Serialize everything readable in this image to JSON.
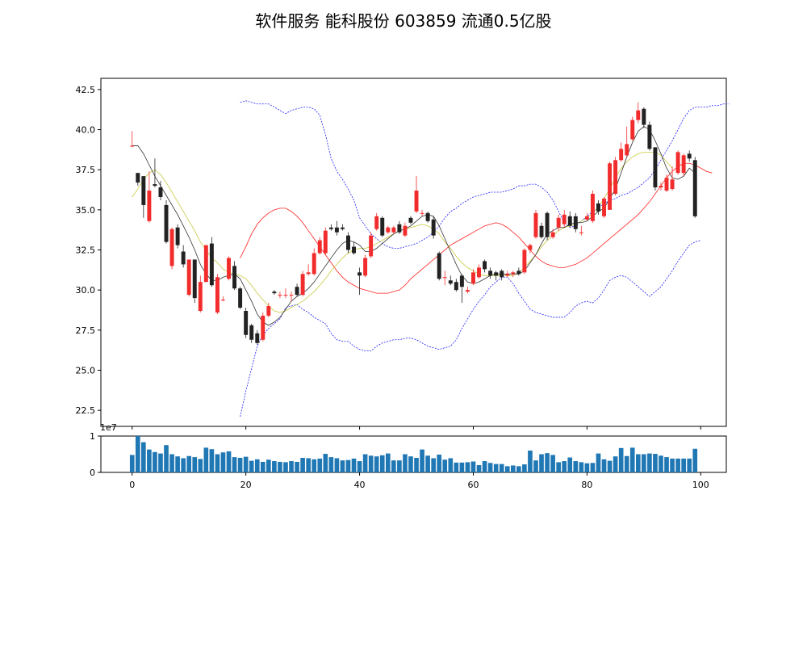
{
  "title": "软件服务 能科股份 603859 流通0.5亿股",
  "chart_data": {
    "type": "candlestick",
    "x": [
      0,
      1,
      2,
      3,
      4,
      5,
      6,
      7,
      8,
      9,
      10,
      11,
      12,
      13,
      14,
      15,
      16,
      17,
      18,
      19,
      20,
      21,
      22,
      23,
      24,
      25,
      26,
      27,
      28,
      29,
      30,
      31,
      32,
      33,
      34,
      35,
      36,
      37,
      38,
      39,
      40,
      41,
      42,
      43,
      44,
      45,
      46,
      47,
      48,
      49,
      50,
      51,
      52,
      53,
      54,
      55,
      56,
      57,
      58,
      59,
      60,
      61,
      62,
      63,
      64,
      65,
      66,
      67,
      68,
      69,
      70,
      71,
      72,
      73,
      74,
      75,
      76,
      77,
      78,
      79,
      80,
      81,
      82,
      83,
      84,
      85,
      86,
      87,
      88,
      89,
      90,
      91,
      92,
      93,
      94,
      95,
      96,
      97,
      98,
      99
    ],
    "open": [
      39.0,
      37.3,
      37.1,
      34.3,
      36.6,
      36.4,
      35.3,
      31.5,
      33.9,
      32.4,
      29.7,
      31.9,
      28.7,
      30.5,
      32.9,
      28.6,
      29.4,
      30.7,
      31.5,
      30.1,
      28.7,
      27.8,
      27.3,
      26.9,
      28.4,
      29.9,
      29.7,
      29.7,
      29.7,
      30.2,
      29.7,
      31.0,
      31.0,
      32.3,
      32.3,
      33.9,
      33.9,
      33.9,
      33.4,
      32.7,
      31.1,
      30.9,
      32.1,
      33.8,
      34.5,
      33.6,
      33.6,
      34.1,
      33.4,
      34.5,
      34.9,
      34.8,
      34.8,
      34.4,
      32.3,
      30.8,
      30.6,
      30.5,
      30.9,
      29.9,
      30.4,
      30.8,
      31.8,
      31.2,
      31.1,
      31.2,
      30.9,
      31.0,
      31.2,
      31.1,
      32.5,
      33.3,
      34.0,
      34.8,
      33.3,
      33.9,
      34.1,
      34.6,
      34.6,
      33.6,
      34.4,
      34.3,
      35.4,
      34.6,
      35.0,
      36.0,
      38.1,
      38.4,
      39.4,
      40.6,
      41.3,
      40.3,
      38.9,
      36.4,
      36.2,
      36.3,
      37.3,
      37.3,
      38.5,
      38.1
    ],
    "close": [
      39.0,
      36.7,
      35.3,
      36.2,
      36.5,
      35.8,
      33.0,
      33.8,
      32.8,
      31.6,
      31.9,
      29.5,
      30.5,
      32.8,
      30.3,
      30.8,
      29.4,
      32.0,
      30.1,
      28.9,
      27.2,
      26.9,
      26.7,
      28.4,
      29.0,
      29.8,
      29.7,
      29.7,
      29.7,
      29.7,
      31.0,
      31.1,
      32.3,
      33.1,
      33.7,
      33.8,
      33.6,
      33.8,
      32.5,
      32.3,
      30.9,
      32.0,
      33.4,
      34.6,
      33.4,
      33.9,
      33.9,
      33.6,
      34.0,
      34.2,
      36.2,
      34.8,
      34.3,
      33.4,
      30.7,
      30.8,
      30.4,
      30.0,
      30.2,
      30.0,
      31.1,
      31.4,
      31.3,
      30.9,
      30.9,
      30.8,
      31.0,
      31.1,
      31.0,
      32.5,
      32.8,
      34.8,
      33.3,
      33.3,
      33.6,
      34.5,
      34.7,
      34.0,
      33.8,
      33.6,
      34.6,
      36.0,
      34.9,
      35.7,
      37.9,
      38.1,
      38.8,
      39.1,
      40.6,
      41.2,
      40.3,
      38.8,
      36.4,
      36.5,
      37.0,
      36.9,
      38.6,
      38.4,
      38.2,
      34.6
    ],
    "high": [
      39.9,
      37.3,
      37.1,
      37.4,
      38.2,
      36.8,
      35.6,
      33.9,
      34.1,
      32.8,
      31.9,
      31.9,
      30.9,
      32.8,
      33.3,
      31.0,
      29.6,
      32.1,
      31.8,
      30.2,
      28.9,
      27.9,
      27.5,
      28.6,
      29.2,
      30.0,
      29.9,
      30.1,
      29.9,
      30.4,
      31.2,
      31.6,
      32.6,
      33.3,
      33.9,
      34.1,
      34.3,
      34.1,
      33.6,
      33.0,
      31.4,
      32.2,
      33.6,
      34.8,
      34.6,
      34.0,
      34.0,
      34.3,
      34.2,
      34.6,
      37.1,
      35.0,
      34.9,
      34.6,
      32.4,
      31.2,
      30.9,
      30.7,
      31.0,
      30.2,
      31.3,
      31.6,
      31.9,
      31.4,
      31.2,
      31.3,
      31.2,
      31.2,
      31.4,
      32.6,
      32.9,
      35.0,
      34.2,
      34.9,
      33.8,
      34.7,
      35.0,
      34.9,
      34.8,
      34.0,
      34.8,
      36.2,
      35.6,
      35.8,
      38.0,
      38.3,
      39.2,
      40.2,
      40.8,
      41.7,
      41.4,
      40.5,
      38.9,
      36.7,
      37.2,
      37.7,
      38.7,
      38.5,
      38.7,
      38.3
    ],
    "low": [
      38.9,
      36.5,
      34.5,
      34.2,
      36.4,
      35.6,
      32.9,
      31.3,
      32.6,
      31.4,
      29.6,
      29.2,
      28.6,
      30.5,
      30.2,
      28.5,
      29.3,
      30.6,
      30.0,
      28.8,
      27.0,
      26.7,
      26.6,
      26.8,
      28.3,
      29.7,
      29.5,
      29.5,
      29.3,
      29.6,
      29.6,
      30.9,
      30.9,
      32.2,
      32.2,
      33.7,
      33.4,
      33.7,
      32.3,
      32.2,
      29.7,
      30.8,
      32.0,
      33.7,
      33.3,
      33.5,
      33.5,
      33.5,
      33.3,
      34.1,
      34.8,
      34.6,
      34.2,
      33.2,
      30.6,
      30.3,
      30.3,
      29.9,
      29.2,
      29.8,
      30.3,
      30.7,
      31.1,
      30.7,
      30.6,
      30.6,
      30.8,
      30.8,
      30.9,
      31.0,
      32.3,
      33.2,
      33.2,
      33.1,
      33.2,
      33.7,
      33.9,
      33.9,
      33.6,
      33.4,
      34.3,
      34.2,
      34.7,
      34.5,
      35.0,
      35.9,
      38.0,
      38.3,
      39.3,
      40.4,
      40.1,
      38.7,
      36.2,
      36.2,
      36.1,
      36.2,
      37.2,
      37.1,
      38.0,
      34.5
    ],
    "ma5": [
      39.0,
      39.0,
      38.5,
      37.8,
      37.1,
      36.5,
      35.9,
      35.3,
      34.7,
      34.0,
      33.3,
      32.5,
      31.6,
      31.0,
      30.6,
      30.6,
      30.8,
      30.9,
      31.0,
      30.7,
      30.0,
      29.3,
      28.5,
      28.0,
      27.8,
      28.0,
      28.3,
      28.8,
      29.3,
      29.6,
      29.8,
      30.1,
      30.5,
      31.0,
      31.5,
      32.0,
      32.5,
      32.9,
      33.1,
      33.0,
      32.8,
      32.4,
      32.4,
      32.6,
      32.9,
      33.2,
      33.5,
      33.7,
      33.8,
      34.0,
      34.3,
      34.6,
      34.7,
      34.6,
      34.0,
      33.2,
      32.4,
      31.6,
      30.9,
      30.5,
      30.4,
      30.5,
      30.7,
      30.9,
      31.0,
      31.0,
      31.0,
      31.0,
      31.0,
      31.2,
      31.7,
      32.2,
      32.9,
      33.5,
      33.7,
      33.9,
      33.9,
      34.1,
      34.2,
      34.2,
      34.3,
      34.6,
      34.9,
      35.1,
      35.7,
      36.3,
      37.3,
      38.3,
      39.2,
      39.9,
      40.2,
      40.0,
      39.3,
      38.5,
      37.6,
      37.0,
      36.9,
      37.1,
      37.6,
      37.3
    ],
    "ma10": [
      35.8,
      36.3,
      36.9,
      37.3,
      37.5,
      37.2,
      36.7,
      36.1,
      35.5,
      34.9,
      34.3,
      33.7,
      33.0,
      32.5,
      32.0,
      31.7,
      31.3,
      31.1,
      31.0,
      30.9,
      30.7,
      30.3,
      29.8,
      29.4,
      29.0,
      28.7,
      28.6,
      28.7,
      28.9,
      29.1,
      29.3,
      29.6,
      29.9,
      30.3,
      30.7,
      31.2,
      31.6,
      32.0,
      32.3,
      32.5,
      32.6,
      32.6,
      32.7,
      32.9,
      33.1,
      33.3,
      33.5,
      33.7,
      33.8,
      33.9,
      34.0,
      34.1,
      34.0,
      33.8,
      33.5,
      33.0,
      32.6,
      32.1,
      31.7,
      31.4,
      31.2,
      31.0,
      30.9,
      30.9,
      30.9,
      30.9,
      30.9,
      30.9,
      31.1,
      31.4,
      31.8,
      32.2,
      32.7,
      33.1,
      33.4,
      33.7,
      33.9,
      34.0,
      34.1,
      34.3,
      34.5,
      34.8,
      35.2,
      35.7,
      36.3,
      37.0,
      37.6,
      38.0,
      38.3,
      38.5,
      38.6,
      38.6,
      38.6,
      38.4,
      38.0,
      37.6
    ],
    "boll_mid": [
      32.0,
      32.7,
      33.5,
      34.1,
      34.5,
      34.8,
      35.0,
      35.1,
      35.1,
      34.9,
      34.6,
      34.2,
      33.7,
      33.2,
      32.7,
      32.2,
      31.7,
      31.2,
      30.8,
      30.5,
      30.3,
      30.1,
      30.0,
      29.9,
      29.8,
      29.8,
      29.8,
      29.9,
      30.0,
      30.3,
      30.7,
      31.0,
      31.3,
      31.6,
      31.9,
      32.2,
      32.5,
      32.8,
      33.0,
      33.2,
      33.4,
      33.6,
      33.8,
      34.0,
      34.1,
      34.2,
      34.1,
      33.9,
      33.6,
      33.3,
      32.9,
      32.5,
      32.1,
      31.8,
      31.6,
      31.5,
      31.4,
      31.4,
      31.5,
      31.6,
      31.8,
      32.0,
      32.3,
      32.6,
      32.9,
      33.2,
      33.5,
      33.8,
      34.1,
      34.4,
      34.7,
      35.1,
      35.5,
      36.0,
      36.5,
      37.0,
      37.4,
      37.7,
      37.9,
      37.9,
      37.8,
      37.6,
      37.4,
      37.3
    ],
    "boll_up": [
      41.7,
      41.8,
      41.7,
      41.6,
      41.6,
      41.6,
      41.4,
      41.2,
      41.0,
      41.2,
      41.3,
      41.4,
      41.4,
      41.3,
      40.9,
      39.7,
      38.2,
      37.4,
      36.9,
      36.3,
      35.6,
      34.5,
      34.0,
      33.5,
      33.2,
      32.9,
      32.7,
      32.6,
      32.6,
      32.7,
      32.8,
      32.9,
      33.1,
      33.3,
      33.6,
      34.0,
      34.5,
      34.9,
      35.1,
      35.4,
      35.6,
      35.8,
      35.9,
      36.0,
      36.1,
      36.1,
      36.1,
      36.2,
      36.3,
      36.5,
      36.5,
      36.6,
      36.6,
      36.4,
      36.1,
      35.6,
      34.9,
      34.2,
      33.9,
      34.0,
      34.3,
      34.6,
      34.9,
      35.1,
      35.4,
      35.6,
      35.7,
      35.9,
      36.0,
      36.2,
      36.4,
      36.7,
      37.0,
      37.5,
      38.1,
      38.7,
      39.3,
      40.0,
      40.7,
      41.2,
      41.4,
      41.4,
      41.4,
      41.5,
      41.5,
      41.6,
      41.6
    ],
    "boll_dn": [
      22.1,
      23.7,
      25.1,
      26.5,
      27.2,
      27.6,
      27.9,
      28.2,
      28.9,
      29.0,
      29.1,
      28.8,
      28.6,
      28.3,
      28.1,
      27.9,
      27.3,
      26.9,
      26.8,
      26.8,
      26.5,
      26.3,
      26.2,
      26.2,
      26.5,
      26.7,
      26.8,
      26.9,
      26.9,
      27.0,
      27.0,
      26.9,
      26.7,
      26.5,
      26.4,
      26.3,
      26.4,
      26.5,
      26.9,
      27.6,
      28.2,
      28.8,
      29.3,
      29.7,
      30.2,
      30.5,
      30.8,
      30.8,
      30.4,
      29.8,
      29.3,
      28.8,
      28.6,
      28.5,
      28.4,
      28.3,
      28.3,
      28.3,
      28.6,
      29.0,
      29.2,
      29.3,
      29.2,
      29.5,
      30.0,
      30.6,
      30.8,
      30.9,
      30.8,
      30.5,
      30.2,
      29.9,
      29.6,
      29.9,
      30.2,
      30.7,
      31.2,
      31.8,
      32.3,
      32.8,
      33.0,
      33.1
    ],
    "volume": [
      4800000,
      10000000,
      8300000,
      6300000,
      5600000,
      5200000,
      7500000,
      5000000,
      4400000,
      3900000,
      4500000,
      4200000,
      3700000,
      6800000,
      6400000,
      5000000,
      5500000,
      5800000,
      4200000,
      4000000,
      4300000,
      3200000,
      3600000,
      2900000,
      3500000,
      3100000,
      2900000,
      2800000,
      3100000,
      2900000,
      4000000,
      3900000,
      3600000,
      3800000,
      5100000,
      4200000,
      3900000,
      3300000,
      3400000,
      3800000,
      3100000,
      5000000,
      4600000,
      4400000,
      4700000,
      5200000,
      3300000,
      3300000,
      5000000,
      4400000,
      4000000,
      6300000,
      4600000,
      3900000,
      4900000,
      3500000,
      3900000,
      2700000,
      2700000,
      2800000,
      3000000,
      2000000,
      3100000,
      2600000,
      2300000,
      2300000,
      1700000,
      1900000,
      1700000,
      2200000,
      6000000,
      3300000,
      5000000,
      5300000,
      4800000,
      2800000,
      3100000,
      4100000,
      3100000,
      2800000,
      2500000,
      2600000,
      5200000,
      3600000,
      3200000,
      4400000,
      6700000,
      4500000,
      6800000,
      5000000,
      5000000,
      5200000,
      5100000,
      4600000,
      4200000,
      3800000,
      3800000,
      3800000,
      3800000,
      6500000
    ],
    "price_axis": {
      "ylim": [
        21.5,
        43.2
      ],
      "ticks": [
        "22.5",
        "25.0",
        "27.5",
        "30.0",
        "32.5",
        "35.0",
        "37.5",
        "40.0",
        "42.5"
      ]
    },
    "volume_axis": {
      "ylim": [
        0,
        1.0
      ],
      "ticks": [
        "0",
        "1"
      ],
      "scale_label": "1e7"
    },
    "x_axis": {
      "xlim": [
        -5.5,
        104.5
      ],
      "ticks": [
        "0",
        "20",
        "40",
        "60",
        "80",
        "100"
      ]
    },
    "colors": {
      "up": "#f22c2c",
      "down": "#222222",
      "ma5": "#333333",
      "ma10": "#c8c840",
      "boll_mid": "#ff2020",
      "boll_band": "#2020ff",
      "volume": "#1f77b4"
    },
    "grid": false,
    "legend": "none"
  }
}
